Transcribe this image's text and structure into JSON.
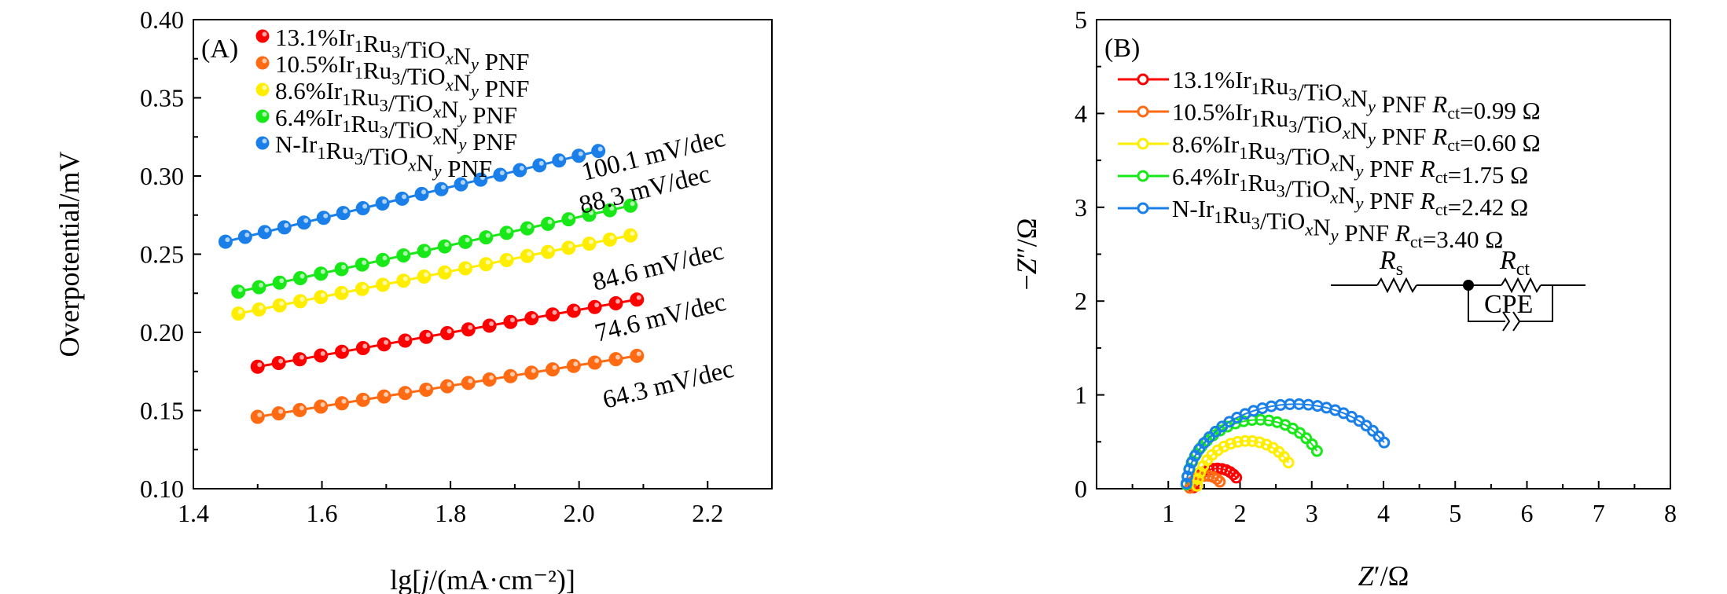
{
  "colors": {
    "red": "#ff0000",
    "orange": "#ff6a13",
    "yellow": "#ffee00",
    "green": "#18e818",
    "blue": "#1a7fe8"
  },
  "chart_data": [
    {
      "type": "scatter",
      "panel_label": "(A)",
      "xlabel": "lg[j/(mA·cm⁻²)]",
      "ylabel": "Overpotential/mV",
      "xlim": [
        1.4,
        2.3
      ],
      "ylim": [
        0.1,
        0.4
      ],
      "xticks": [
        "1.4",
        "1.6",
        "1.8",
        "2.0",
        "2.2"
      ],
      "yticks": [
        "0.10",
        "0.15",
        "0.20",
        "0.25",
        "0.30",
        "0.35",
        "0.40"
      ],
      "legend_position": "top-left",
      "series": [
        {
          "name": "13.1%Ir₁Ru₃/TiOₓNᵧ PNF",
          "color_key": "red",
          "x_start": 1.5,
          "x_end": 2.09,
          "y_start": 0.178,
          "y_end": 0.221,
          "n_points": 19,
          "slope_label": "74.6 mV/dec"
        },
        {
          "name": "10.5%Ir₁Ru₃/TiOₓNᵧ PNF",
          "color_key": "orange",
          "x_start": 1.5,
          "x_end": 2.09,
          "y_start": 0.146,
          "y_end": 0.185,
          "n_points": 19,
          "slope_label": "64.3 mV/dec"
        },
        {
          "name": "8.6%Ir₁Ru₃/TiOₓNᵧ PNF",
          "color_key": "yellow",
          "x_start": 1.47,
          "x_end": 2.08,
          "y_start": 0.212,
          "y_end": 0.262,
          "n_points": 20,
          "slope_label": "84.6 mV/dec"
        },
        {
          "name": "6.4%Ir₁Ru₃/TiOₓNᵧ PNF",
          "color_key": "green",
          "x_start": 1.47,
          "x_end": 2.08,
          "y_start": 0.226,
          "y_end": 0.281,
          "n_points": 20,
          "slope_label": "88.3 mV/dec"
        },
        {
          "name": "N-Ir₁Ru₃/TiOₓNᵧ PNF",
          "color_key": "blue",
          "x_start": 1.45,
          "x_end": 2.03,
          "y_start": 0.258,
          "y_end": 0.316,
          "n_points": 20,
          "slope_label": "100.1 mV/dec"
        }
      ]
    },
    {
      "type": "scatter",
      "panel_label": "(B)",
      "xlabel": "Z′/Ω",
      "ylabel": "−Z″/Ω",
      "xlim": [
        0,
        8
      ],
      "ylim": [
        0,
        5
      ],
      "xticks": [
        "1",
        "2",
        "3",
        "4",
        "5",
        "6",
        "7",
        "8"
      ],
      "yticks": [
        "0",
        "1",
        "2",
        "3",
        "4",
        "5"
      ],
      "legend_position": "top-left",
      "circuit": {
        "rs_label": "R",
        "rs_sub": "s",
        "rct_label": "R",
        "rct_sub": "ct",
        "cpe_label": "CPE"
      },
      "series": [
        {
          "name": "13.1%Ir₁Ru₃/TiOₓNᵧ PNF",
          "rct_text": "=0.99 Ω",
          "color_key": "red",
          "z_start": 1.35,
          "z_end": 1.95,
          "z_peak": 0.22,
          "n_points": 14
        },
        {
          "name": "10.5%Ir₁Ru₃/TiOₓNᵧ PNF",
          "rct_text": "=0.60 Ω",
          "color_key": "orange",
          "z_start": 1.3,
          "z_end": 1.72,
          "z_peak": 0.14,
          "n_points": 10
        },
        {
          "name": "8.6%Ir₁Ru₃/TiOₓNᵧ PNF",
          "rct_text": "=1.75 Ω",
          "color_key": "yellow",
          "z_start": 1.4,
          "z_end": 2.68,
          "z_peak": 0.52,
          "n_points": 18
        },
        {
          "name": "6.4%Ir₁Ru₃/TiOₓNᵧ PNF",
          "rct_text": "=2.42 Ω",
          "color_key": "green",
          "z_start": 1.25,
          "z_end": 3.08,
          "z_peak": 0.75,
          "n_points": 22
        },
        {
          "name": "N-Ir₁Ru₃/TiOₓNᵧ PNF",
          "rct_text": "=3.40 Ω",
          "color_key": "blue",
          "z_start": 1.25,
          "z_end": 4.02,
          "z_peak": 0.92,
          "n_points": 30
        }
      ]
    }
  ]
}
